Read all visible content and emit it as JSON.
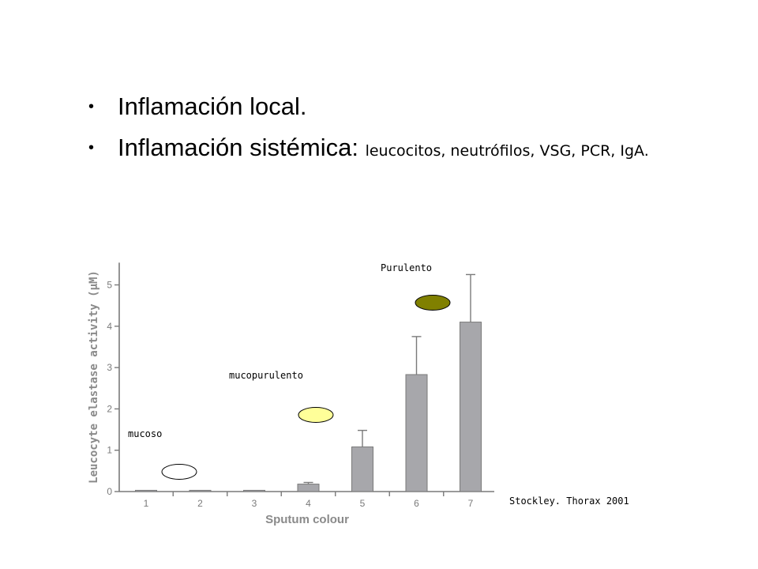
{
  "bullets": [
    {
      "glyph": "•",
      "main": "Inflamación local.",
      "sub": ""
    },
    {
      "glyph": "•",
      "main": "Inflamación sistémica: ",
      "sub": "leucocitos, neutrófilos, VSG, PCR, IgA."
    }
  ],
  "chart_data": {
    "type": "bar",
    "categories": [
      "1",
      "2",
      "3",
      "4",
      "5",
      "6",
      "7"
    ],
    "values": [
      0.03,
      0.03,
      0.03,
      0.18,
      1.08,
      2.83,
      4.1
    ],
    "error_upper": [
      0.03,
      0.03,
      0.03,
      0.22,
      1.48,
      3.75,
      5.25
    ],
    "ylim": [
      0,
      5.5
    ],
    "yticks": [
      "0",
      "1",
      "2",
      "3",
      "4",
      "5"
    ],
    "xlabel": "Sputum colour",
    "ylabel": "Leucocyte elastase activity (μM)",
    "grid": false,
    "bar_color": "#a7a7ab",
    "annotations": {
      "mucoso": {
        "text": "mucoso",
        "color": "#ffffff"
      },
      "mucopurulento": {
        "text": "mucopurulento",
        "color": "#ffff99"
      },
      "purulento": {
        "text": "Purulento",
        "color": "#808000"
      }
    },
    "source": "Stockley. Thorax 2001"
  }
}
